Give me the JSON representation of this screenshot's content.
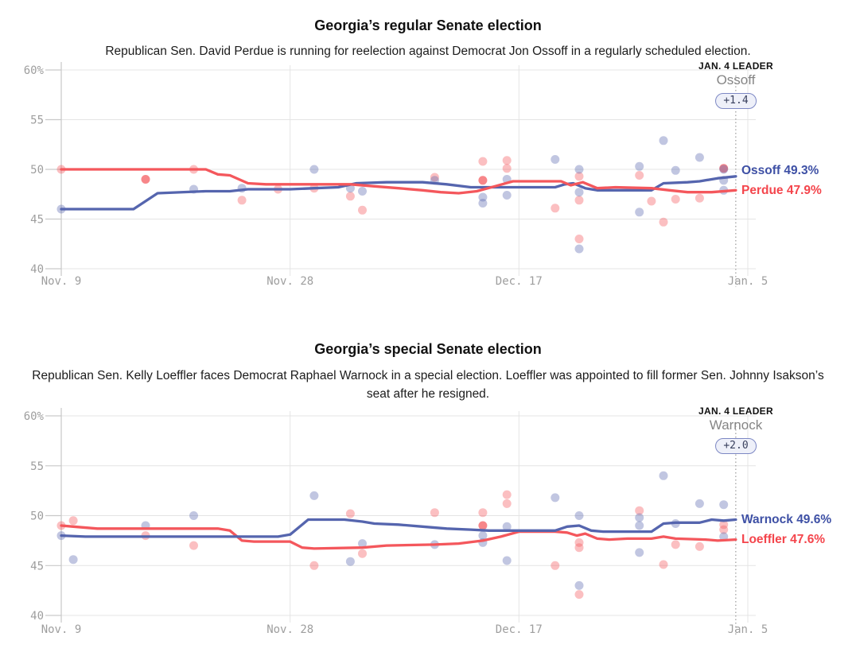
{
  "colors": {
    "dem_line": "#5565ae",
    "dem_label": "#3e50a5",
    "rep_line": "#f4575c",
    "rep_label": "#f4454c",
    "poll_dem": "#5b69af",
    "poll_rep": "#f4575c",
    "grid": "#e4e4e4",
    "axis": "#c9c9c9",
    "axis_text": "#9e9e9e",
    "leader_dash": "#9a9a9a",
    "badge_border": "#7d88c4",
    "badge_bg": "#eef0f9",
    "badge_text": "#39405e",
    "kicker_text": "#111111",
    "leader_name_text": "#858585",
    "title_text": "#111111"
  },
  "chart_data": [
    {
      "type": "line",
      "title": "Georgia’s regular Senate election",
      "subtitle": "Republican Sen. David Perdue is running for reelection against Democrat Jon Ossoff in a regularly scheduled election.",
      "x_tick_labels": [
        "Nov. 9",
        "Nov. 28",
        "Dec. 17",
        "Jan. 5"
      ],
      "x_tick_days": [
        0,
        19,
        38,
        57
      ],
      "x_range_days": 57,
      "y_tick_labels": [
        "60%",
        "55",
        "50",
        "45",
        "40"
      ],
      "y_tick_values": [
        60,
        55,
        50,
        45,
        40
      ],
      "ylim": [
        40,
        60
      ],
      "grid": true,
      "leader_day": 56,
      "annotation": {
        "kicker": "JAN. 4 LEADER",
        "name": "Ossoff",
        "margin": "+1.4"
      },
      "series": [
        {
          "id": "dem",
          "name": "Ossoff",
          "final_value": 49.3,
          "final_label": "Ossoff 49.3%",
          "points": [
            [
              0,
              46.0
            ],
            [
              6,
              46.0
            ],
            [
              8,
              47.6
            ],
            [
              12,
              47.8
            ],
            [
              14,
              47.8
            ],
            [
              15.5,
              48.0
            ],
            [
              19,
              48.0
            ],
            [
              21,
              48.1
            ],
            [
              23,
              48.2
            ],
            [
              24.5,
              48.6
            ],
            [
              27,
              48.7
            ],
            [
              30,
              48.7
            ],
            [
              32,
              48.5
            ],
            [
              34,
              48.2
            ],
            [
              38,
              48.2
            ],
            [
              41,
              48.2
            ],
            [
              41.8,
              48.5
            ],
            [
              42.5,
              48.6
            ],
            [
              43.5,
              48.1
            ],
            [
              44.5,
              47.9
            ],
            [
              49,
              47.9
            ],
            [
              50,
              48.6
            ],
            [
              52,
              48.7
            ],
            [
              53,
              48.8
            ],
            [
              54.5,
              49.1
            ],
            [
              56,
              49.3
            ]
          ]
        },
        {
          "id": "rep",
          "name": "Perdue",
          "final_value": 47.9,
          "final_label": "Perdue 47.9%",
          "points": [
            [
              0,
              50.0
            ],
            [
              12,
              50.0
            ],
            [
              13,
              49.5
            ],
            [
              14,
              49.4
            ],
            [
              15.5,
              48.6
            ],
            [
              17,
              48.5
            ],
            [
              24,
              48.5
            ],
            [
              26,
              48.3
            ],
            [
              28,
              48.1
            ],
            [
              30,
              47.9
            ],
            [
              31.5,
              47.7
            ],
            [
              33,
              47.6
            ],
            [
              34.5,
              47.8
            ],
            [
              36,
              48.3
            ],
            [
              37.5,
              48.8
            ],
            [
              41.5,
              48.8
            ],
            [
              42.3,
              48.4
            ],
            [
              43.3,
              48.7
            ],
            [
              44.5,
              48.1
            ],
            [
              46,
              48.2
            ],
            [
              49,
              48.1
            ],
            [
              50.5,
              47.9
            ],
            [
              52,
              47.7
            ],
            [
              54,
              47.7
            ],
            [
              56,
              47.9
            ]
          ]
        }
      ],
      "polls": [
        {
          "party": "rep",
          "day": 0,
          "value": 50.0
        },
        {
          "party": "rep",
          "day": 7,
          "value": 49.0,
          "dark": true
        },
        {
          "party": "rep",
          "day": 11,
          "value": 50.0
        },
        {
          "party": "rep",
          "day": 15,
          "value": 46.9
        },
        {
          "party": "rep",
          "day": 18,
          "value": 48.0
        },
        {
          "party": "rep",
          "day": 21,
          "value": 48.1
        },
        {
          "party": "rep",
          "day": 24,
          "value": 47.3
        },
        {
          "party": "rep",
          "day": 25,
          "value": 45.9
        },
        {
          "party": "rep",
          "day": 31,
          "value": 49.2
        },
        {
          "party": "rep",
          "day": 35,
          "value": 50.8
        },
        {
          "party": "rep",
          "day": 35,
          "value": 48.9,
          "dark": true
        },
        {
          "party": "rep",
          "day": 37,
          "value": 50.9
        },
        {
          "party": "rep",
          "day": 37,
          "value": 50.1
        },
        {
          "party": "rep",
          "day": 41,
          "value": 46.1
        },
        {
          "party": "rep",
          "day": 43,
          "value": 49.3
        },
        {
          "party": "rep",
          "day": 43,
          "value": 46.9
        },
        {
          "party": "rep",
          "day": 43,
          "value": 43.0
        },
        {
          "party": "rep",
          "day": 48,
          "value": 49.4
        },
        {
          "party": "rep",
          "day": 49,
          "value": 46.8
        },
        {
          "party": "rep",
          "day": 50,
          "value": 44.7
        },
        {
          "party": "rep",
          "day": 51,
          "value": 47.0
        },
        {
          "party": "rep",
          "day": 53,
          "value": 47.1
        },
        {
          "party": "rep",
          "day": 55,
          "value": 50.1,
          "dark": true
        },
        {
          "party": "dem",
          "day": 0,
          "value": 46.0
        },
        {
          "party": "dem",
          "day": 11,
          "value": 48.0
        },
        {
          "party": "dem",
          "day": 15,
          "value": 48.1
        },
        {
          "party": "dem",
          "day": 21,
          "value": 50.0
        },
        {
          "party": "dem",
          "day": 24,
          "value": 48.1
        },
        {
          "party": "dem",
          "day": 25,
          "value": 47.8
        },
        {
          "party": "dem",
          "day": 31,
          "value": 48.9
        },
        {
          "party": "dem",
          "day": 35,
          "value": 47.2
        },
        {
          "party": "dem",
          "day": 35,
          "value": 46.6
        },
        {
          "party": "dem",
          "day": 37,
          "value": 49.0
        },
        {
          "party": "dem",
          "day": 37,
          "value": 47.4
        },
        {
          "party": "dem",
          "day": 41,
          "value": 51.0
        },
        {
          "party": "dem",
          "day": 43,
          "value": 50.0
        },
        {
          "party": "dem",
          "day": 43,
          "value": 47.7
        },
        {
          "party": "dem",
          "day": 43,
          "value": 42.0
        },
        {
          "party": "dem",
          "day": 48,
          "value": 50.3
        },
        {
          "party": "dem",
          "day": 48,
          "value": 45.7
        },
        {
          "party": "dem",
          "day": 50,
          "value": 52.9
        },
        {
          "party": "dem",
          "day": 51,
          "value": 49.9
        },
        {
          "party": "dem",
          "day": 53,
          "value": 51.2
        },
        {
          "party": "dem",
          "day": 55,
          "value": 50.0
        },
        {
          "party": "dem",
          "day": 55,
          "value": 48.9
        },
        {
          "party": "dem",
          "day": 55,
          "value": 47.9
        }
      ]
    },
    {
      "type": "line",
      "title": "Georgia’s special Senate election",
      "subtitle": "Republican Sen. Kelly Loeffler faces Democrat Raphael Warnock in a special election. Loeffler was appointed to fill former Sen. Johnny Isakson’s seat after he resigned.",
      "x_tick_labels": [
        "Nov. 9",
        "Nov. 28",
        "Dec. 17",
        "Jan. 5"
      ],
      "x_tick_days": [
        0,
        19,
        38,
        57
      ],
      "x_range_days": 57,
      "y_tick_labels": [
        "60%",
        "55",
        "50",
        "45",
        "40"
      ],
      "y_tick_values": [
        60,
        55,
        50,
        45,
        40
      ],
      "ylim": [
        40,
        60
      ],
      "grid": true,
      "leader_day": 56,
      "annotation": {
        "kicker": "JAN. 4 LEADER",
        "name": "Warnock",
        "margin": "+2.0"
      },
      "series": [
        {
          "id": "rep",
          "name": "Loeffler",
          "final_value": 47.6,
          "final_label": "Loeffler 47.6%",
          "points": [
            [
              0,
              49.0
            ],
            [
              1,
              48.9
            ],
            [
              3,
              48.7
            ],
            [
              13,
              48.7
            ],
            [
              14,
              48.5
            ],
            [
              15,
              47.5
            ],
            [
              16,
              47.4
            ],
            [
              19,
              47.4
            ],
            [
              20,
              46.8
            ],
            [
              21,
              46.7
            ],
            [
              25,
              46.8
            ],
            [
              27,
              47.0
            ],
            [
              31,
              47.1
            ],
            [
              33,
              47.2
            ],
            [
              35,
              47.5
            ],
            [
              36.5,
              47.9
            ],
            [
              38,
              48.4
            ],
            [
              41,
              48.4
            ],
            [
              42,
              48.3
            ],
            [
              42.8,
              48.0
            ],
            [
              43.5,
              48.2
            ],
            [
              44.5,
              47.7
            ],
            [
              45.5,
              47.6
            ],
            [
              47,
              47.7
            ],
            [
              49,
              47.7
            ],
            [
              50,
              47.9
            ],
            [
              51,
              47.7
            ],
            [
              53.5,
              47.6
            ],
            [
              54.5,
              47.5
            ],
            [
              56,
              47.6
            ]
          ]
        },
        {
          "id": "dem",
          "name": "Warnock",
          "final_value": 49.6,
          "final_label": "Warnock 49.6%",
          "points": [
            [
              0,
              48.0
            ],
            [
              2,
              47.9
            ],
            [
              18,
              47.9
            ],
            [
              19,
              48.1
            ],
            [
              20.5,
              49.6
            ],
            [
              23.5,
              49.6
            ],
            [
              25,
              49.4
            ],
            [
              26,
              49.2
            ],
            [
              28,
              49.1
            ],
            [
              30,
              48.9
            ],
            [
              32,
              48.7
            ],
            [
              34,
              48.6
            ],
            [
              35.5,
              48.5
            ],
            [
              41,
              48.5
            ],
            [
              42,
              48.9
            ],
            [
              43,
              49.0
            ],
            [
              44,
              48.5
            ],
            [
              45,
              48.4
            ],
            [
              49,
              48.4
            ],
            [
              50,
              49.2
            ],
            [
              51,
              49.3
            ],
            [
              53,
              49.3
            ],
            [
              54,
              49.6
            ],
            [
              55,
              49.5
            ],
            [
              56,
              49.6
            ]
          ]
        }
      ],
      "polls": [
        {
          "party": "rep",
          "day": 0,
          "value": 49.0
        },
        {
          "party": "rep",
          "day": 1,
          "value": 49.5
        },
        {
          "party": "rep",
          "day": 7,
          "value": 48.0
        },
        {
          "party": "rep",
          "day": 11,
          "value": 47.0
        },
        {
          "party": "rep",
          "day": 21,
          "value": 45.0
        },
        {
          "party": "rep",
          "day": 24,
          "value": 50.2
        },
        {
          "party": "rep",
          "day": 25,
          "value": 46.2
        },
        {
          "party": "rep",
          "day": 31,
          "value": 50.3
        },
        {
          "party": "rep",
          "day": 35,
          "value": 50.3
        },
        {
          "party": "rep",
          "day": 35,
          "value": 49.0,
          "dark": true
        },
        {
          "party": "rep",
          "day": 37,
          "value": 52.1
        },
        {
          "party": "rep",
          "day": 37,
          "value": 51.2
        },
        {
          "party": "rep",
          "day": 41,
          "value": 45.0
        },
        {
          "party": "rep",
          "day": 43,
          "value": 47.3
        },
        {
          "party": "rep",
          "day": 43,
          "value": 46.8
        },
        {
          "party": "rep",
          "day": 43,
          "value": 42.1
        },
        {
          "party": "rep",
          "day": 48,
          "value": 50.5
        },
        {
          "party": "rep",
          "day": 50,
          "value": 45.1
        },
        {
          "party": "rep",
          "day": 51,
          "value": 47.1
        },
        {
          "party": "rep",
          "day": 53,
          "value": 46.9
        },
        {
          "party": "rep",
          "day": 55,
          "value": 49.1
        },
        {
          "party": "rep",
          "day": 55,
          "value": 48.6
        },
        {
          "party": "dem",
          "day": 0,
          "value": 48.0
        },
        {
          "party": "dem",
          "day": 1,
          "value": 45.6
        },
        {
          "party": "dem",
          "day": 7,
          "value": 49.0
        },
        {
          "party": "dem",
          "day": 11,
          "value": 50.0
        },
        {
          "party": "dem",
          "day": 21,
          "value": 52.0
        },
        {
          "party": "dem",
          "day": 24,
          "value": 45.4
        },
        {
          "party": "dem",
          "day": 25,
          "value": 47.2
        },
        {
          "party": "dem",
          "day": 31,
          "value": 47.1
        },
        {
          "party": "dem",
          "day": 35,
          "value": 48.0
        },
        {
          "party": "dem",
          "day": 35,
          "value": 47.3
        },
        {
          "party": "dem",
          "day": 37,
          "value": 48.9
        },
        {
          "party": "dem",
          "day": 37,
          "value": 45.5
        },
        {
          "party": "dem",
          "day": 41,
          "value": 51.8
        },
        {
          "party": "dem",
          "day": 43,
          "value": 50.0
        },
        {
          "party": "dem",
          "day": 43,
          "value": 43.0
        },
        {
          "party": "dem",
          "day": 48,
          "value": 49.8
        },
        {
          "party": "dem",
          "day": 48,
          "value": 49.0
        },
        {
          "party": "dem",
          "day": 48,
          "value": 46.3
        },
        {
          "party": "dem",
          "day": 50,
          "value": 54.0
        },
        {
          "party": "dem",
          "day": 51,
          "value": 49.2
        },
        {
          "party": "dem",
          "day": 53,
          "value": 51.2
        },
        {
          "party": "dem",
          "day": 55,
          "value": 51.1
        },
        {
          "party": "dem",
          "day": 55,
          "value": 47.9
        }
      ]
    }
  ]
}
